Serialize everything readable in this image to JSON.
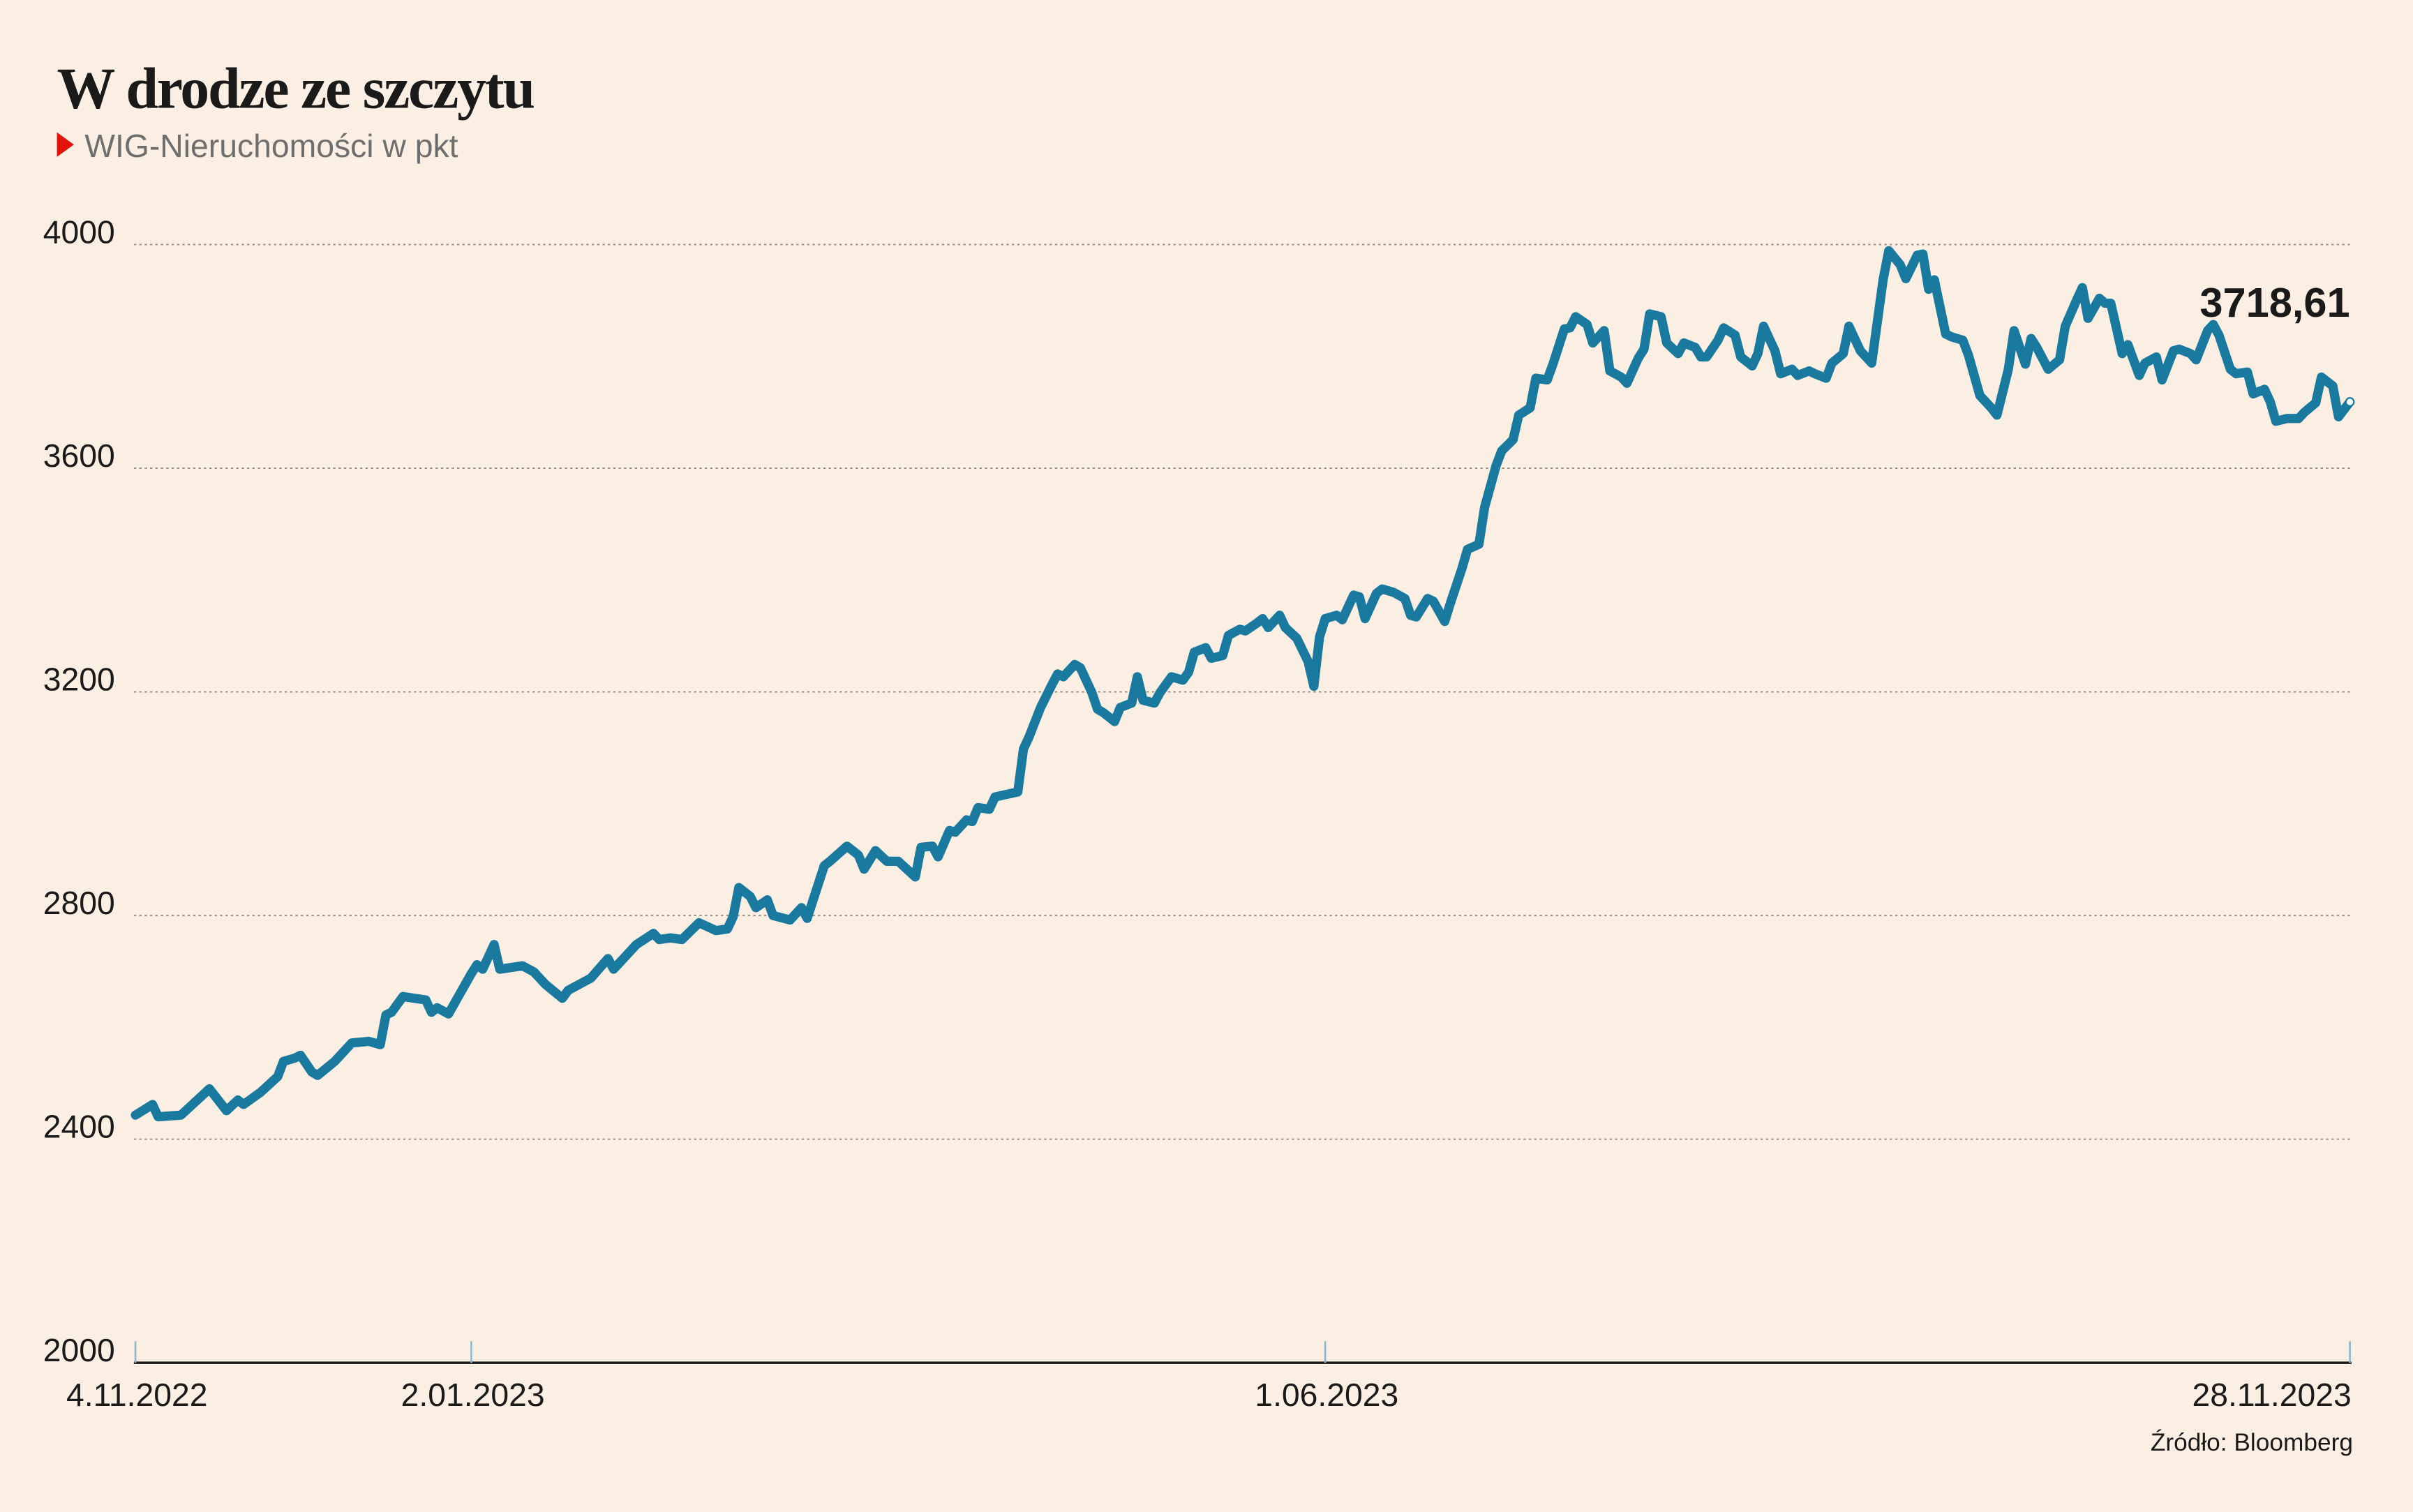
{
  "chart_data": {
    "type": "line",
    "title": "W drodze ze szczytu",
    "subtitle": "WIG-Nieruchomości w pkt",
    "source": "Źródło: Bloomberg",
    "end_label": "3718,61",
    "color": "#19799f",
    "grid": true,
    "ylim": [
      2000,
      4000
    ],
    "yticks": [
      2000,
      2400,
      2800,
      3200,
      3600,
      4000
    ],
    "xlim": [
      "2022-11-04",
      "2023-11-28"
    ],
    "xticks": [
      {
        "value": "2022-11-04",
        "label": "4.11.2022"
      },
      {
        "value": "2023-01-02",
        "label": "2.01.2023"
      },
      {
        "value": "2023-06-01",
        "label": "1.06.2023"
      },
      {
        "value": "2023-11-28",
        "label": "28.11.2023"
      }
    ],
    "x": [
      "2022-11-04",
      "2022-11-07",
      "2022-11-08",
      "2022-11-12",
      "2022-11-17",
      "2022-11-20",
      "2022-11-22",
      "2022-11-23",
      "2022-11-26",
      "2022-11-29",
      "2022-11-30",
      "2022-12-02",
      "2022-12-03",
      "2022-12-05",
      "2022-12-06",
      "2022-12-09",
      "2022-12-12",
      "2022-12-15",
      "2022-12-17",
      "2022-12-18",
      "2022-12-19",
      "2022-12-21",
      "2022-12-25",
      "2022-12-26",
      "2022-12-27",
      "2022-12-29",
      "2023-01-02",
      "2023-01-03",
      "2023-01-04",
      "2023-01-06",
      "2023-01-07",
      "2023-01-11",
      "2023-01-13",
      "2023-01-15",
      "2023-01-18",
      "2023-01-19",
      "2023-01-23",
      "2023-01-26",
      "2023-01-27",
      "2023-01-31",
      "2023-02-03",
      "2023-02-04",
      "2023-02-06",
      "2023-02-08",
      "2023-02-11",
      "2023-02-14",
      "2023-02-16",
      "2023-02-17",
      "2023-02-18",
      "2023-02-20",
      "2023-02-21",
      "2023-02-23",
      "2023-02-24",
      "2023-02-27",
      "2023-03-01",
      "2023-03-02",
      "2023-03-05",
      "2023-03-06",
      "2023-03-09",
      "2023-03-11",
      "2023-03-12",
      "2023-03-14",
      "2023-03-16",
      "2023-03-18",
      "2023-03-21",
      "2023-03-22",
      "2023-03-24",
      "2023-03-25",
      "2023-03-27",
      "2023-03-28",
      "2023-03-30",
      "2023-03-31",
      "2023-04-01",
      "2023-04-03",
      "2023-04-04",
      "2023-04-08",
      "2023-04-09",
      "2023-04-10",
      "2023-04-12",
      "2023-04-14",
      "2023-04-15",
      "2023-04-16",
      "2023-04-18",
      "2023-04-19",
      "2023-04-21",
      "2023-04-22",
      "2023-04-23",
      "2023-04-25",
      "2023-04-26",
      "2023-04-28",
      "2023-04-29",
      "2023-04-30",
      "2023-05-02",
      "2023-05-03",
      "2023-05-05",
      "2023-05-07",
      "2023-05-08",
      "2023-05-09",
      "2023-05-11",
      "2023-05-12",
      "2023-05-14",
      "2023-05-15",
      "2023-05-17",
      "2023-05-18",
      "2023-05-20",
      "2023-05-21",
      "2023-05-22",
      "2023-05-24",
      "2023-05-25",
      "2023-05-27",
      "2023-05-29",
      "2023-05-30",
      "2023-05-31",
      "2023-06-01",
      "2023-06-03",
      "2023-06-04",
      "2023-06-06",
      "2023-06-07",
      "2023-06-08",
      "2023-06-10",
      "2023-06-11",
      "2023-06-13",
      "2023-06-15",
      "2023-06-16",
      "2023-06-17",
      "2023-06-19",
      "2023-06-20",
      "2023-06-22",
      "2023-06-23",
      "2023-06-25",
      "2023-06-26",
      "2023-06-28",
      "2023-06-29",
      "2023-07-01",
      "2023-07-02",
      "2023-07-04",
      "2023-07-05",
      "2023-07-07",
      "2023-07-08",
      "2023-07-10",
      "2023-07-11",
      "2023-07-13",
      "2023-07-14",
      "2023-07-15",
      "2023-07-17",
      "2023-07-18",
      "2023-07-20",
      "2023-07-21",
      "2023-07-23",
      "2023-07-24",
      "2023-07-26",
      "2023-07-27",
      "2023-07-28",
      "2023-07-30",
      "2023-07-31",
      "2023-08-02",
      "2023-08-03",
      "2023-08-05",
      "2023-08-06",
      "2023-08-07",
      "2023-08-09",
      "2023-08-10",
      "2023-08-12",
      "2023-08-13",
      "2023-08-15",
      "2023-08-16",
      "2023-08-17",
      "2023-08-19",
      "2023-08-20",
      "2023-08-22",
      "2023-08-23",
      "2023-08-25",
      "2023-08-26",
      "2023-08-28",
      "2023-08-29",
      "2023-08-31",
      "2023-09-01",
      "2023-09-03",
      "2023-09-04",
      "2023-09-05",
      "2023-09-07",
      "2023-09-08",
      "2023-09-10",
      "2023-09-11",
      "2023-09-13",
      "2023-09-14",
      "2023-09-15",
      "2023-09-16",
      "2023-09-18",
      "2023-09-19",
      "2023-09-21",
      "2023-09-22",
      "2023-09-24",
      "2023-09-26",
      "2023-09-27",
      "2023-09-29",
      "2023-09-30",
      "2023-10-02",
      "2023-10-03",
      "2023-10-04",
      "2023-10-06",
      "2023-10-08",
      "2023-10-09",
      "2023-10-11",
      "2023-10-12",
      "2023-10-13",
      "2023-10-15",
      "2023-10-16",
      "2023-10-17",
      "2023-10-19",
      "2023-10-20",
      "2023-10-22",
      "2023-10-23",
      "2023-10-25",
      "2023-10-26",
      "2023-10-28",
      "2023-10-29",
      "2023-10-31",
      "2023-11-01",
      "2023-11-03",
      "2023-11-04",
      "2023-11-05",
      "2023-11-07",
      "2023-11-08",
      "2023-11-10",
      "2023-11-11",
      "2023-11-13",
      "2023-11-14",
      "2023-11-15",
      "2023-11-17",
      "2023-11-19",
      "2023-11-20",
      "2023-11-22",
      "2023-11-23",
      "2023-11-25",
      "2023-11-26",
      "2023-11-28"
    ],
    "values": [
      2443,
      2462,
      2440,
      2443,
      2490,
      2451,
      2470,
      2462,
      2484,
      2512,
      2539,
      2545,
      2550,
      2520,
      2514,
      2539,
      2572,
      2575,
      2569,
      2622,
      2627,
      2655,
      2649,
      2627,
      2635,
      2624,
      2696,
      2712,
      2704,
      2748,
      2704,
      2710,
      2699,
      2677,
      2652,
      2666,
      2688,
      2723,
      2704,
      2748,
      2768,
      2757,
      2760,
      2757,
      2787,
      2773,
      2776,
      2798,
      2850,
      2834,
      2814,
      2828,
      2800,
      2792,
      2814,
      2795,
      2889,
      2897,
      2924,
      2908,
      2883,
      2916,
      2897,
      2897,
      2869,
      2922,
      2924,
      2905,
      2952,
      2949,
      2971,
      2968,
      2993,
      2990,
      3012,
      3021,
      3098,
      3120,
      3172,
      3213,
      3232,
      3227,
      3249,
      3243,
      3199,
      3169,
      3163,
      3147,
      3172,
      3180,
      3227,
      3185,
      3180,
      3199,
      3227,
      3221,
      3235,
      3271,
      3279,
      3260,
      3265,
      3301,
      3312,
      3309,
      3323,
      3331,
      3315,
      3337,
      3315,
      3296,
      3254,
      3210,
      3298,
      3331,
      3337,
      3329,
      3373,
      3370,
      3331,
      3376,
      3384,
      3378,
      3367,
      3337,
      3334,
      3367,
      3362,
      3326,
      3359,
      3420,
      3455,
      3464,
      3530,
      3604,
      3631,
      3651,
      3695,
      3708,
      3761,
      3758,
      3786,
      3849,
      3851,
      3871,
      3857,
      3824,
      3846,
      3774,
      3763,
      3752,
      3797,
      3813,
      3876,
      3871,
      3824,
      3805,
      3824,
      3816,
      3799,
      3799,
      3829,
      3851,
      3838,
      3799,
      3783,
      3805,
      3854,
      3810,
      3769,
      3777,
      3766,
      3774,
      3769,
      3761,
      3788,
      3805,
      3854,
      3810,
      3799,
      3788,
      3937,
      3989,
      3964,
      3939,
      3981,
      3983,
      3920,
      3937,
      3840,
      3835,
      3829,
      3802,
      3730,
      3708,
      3695,
      3777,
      3846,
      3786,
      3832,
      3816,
      3777,
      3794,
      3854,
      3901,
      3923,
      3868,
      3904,
      3895,
      3895,
      3805,
      3821,
      3766,
      3788,
      3799,
      3758,
      3810,
      3813,
      3805,
      3794,
      3846,
      3857,
      3838,
      3777,
      3769,
      3772,
      3733,
      3741,
      3719,
      3684,
      3689,
      3689,
      3700,
      3717,
      3763,
      3747,
      3692,
      3718.61
    ]
  }
}
